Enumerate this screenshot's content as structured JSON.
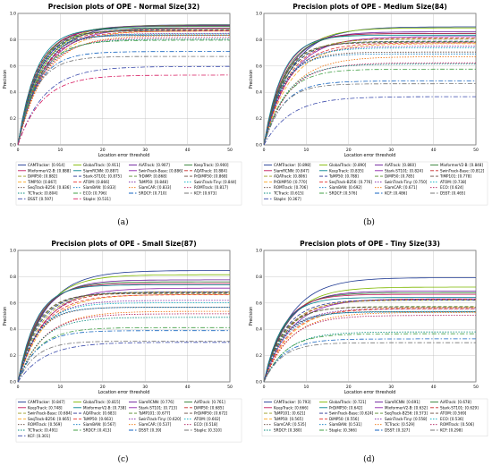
{
  "colors": {
    "palette": [
      "#1f3a93",
      "#7fb800",
      "#6a1b9a",
      "#2e7d32",
      "#c2185b",
      "#00838f",
      "#8e24aa",
      "#c62828",
      "#9e9d24",
      "#283593",
      "#558b2f",
      "#6d4c41",
      "#f9a825",
      "#e53935",
      "#7b1fa2",
      "#00acc1",
      "#5d4037",
      "#0277bd",
      "#ef6c00",
      "#ad1457",
      "#00897b",
      "#43a047",
      "#1565c0",
      "#757575",
      "#3949ab",
      "#d81b60",
      "#004d40",
      "#827717",
      "#4527a0",
      "#5c6bc0"
    ]
  },
  "chart_data": [
    {
      "type": "line",
      "caption": "(a)",
      "title": "Precision plots of OPE - Normal Size(32)",
      "xlabel": "Location error threshold",
      "ylabel": "Precision",
      "xlim": [
        0,
        50
      ],
      "ylim": [
        0,
        1.0
      ],
      "xticks": [
        0,
        10,
        20,
        30,
        40,
        50
      ],
      "yticks": [
        0.0,
        0.2,
        0.4,
        0.6,
        0.8,
        1.0
      ],
      "grid": true,
      "legend_position": "below",
      "series": [
        {
          "name": "CAMTracker: [0.914]",
          "value": 0.914
        },
        {
          "name": "GlobalTrack: [0.911]",
          "value": 0.911
        },
        {
          "name": "AiATrack: [0.907]",
          "value": 0.907
        },
        {
          "name": "KeepTrack: [0.900]",
          "value": 0.9
        },
        {
          "name": "MixformerV2-B: [0.888]",
          "value": 0.888
        },
        {
          "name": "SiamRCNN: [0.887]",
          "value": 0.887
        },
        {
          "name": "SwinTrack-Base: [0.886]",
          "value": 0.886
        },
        {
          "name": "AQATrack: [0.884]",
          "value": 0.884
        },
        {
          "name": "DiMP50: [0.882]",
          "value": 0.882
        },
        {
          "name": "Stark-ST101: [0.875]",
          "value": 0.875
        },
        {
          "name": "TrDiMP: [0.868]",
          "value": 0.868
        },
        {
          "name": "PrDiMP50: [0.868]",
          "value": 0.868
        },
        {
          "name": "TiMP50: [0.867]",
          "value": 0.867
        },
        {
          "name": "ATOM: [0.866]",
          "value": 0.866
        },
        {
          "name": "TsMP50: [0.848]",
          "value": 0.848
        },
        {
          "name": "SwinTrack-Tiny: [0.844]",
          "value": 0.844
        },
        {
          "name": "SeqTrack-B256: [0.836]",
          "value": 0.836
        },
        {
          "name": "SiamBAN: [0.833]",
          "value": 0.833
        },
        {
          "name": "SiamCAR: [0.833]",
          "value": 0.833
        },
        {
          "name": "ROMTrack: [0.817]",
          "value": 0.817
        },
        {
          "name": "TCTrack: [0.804]",
          "value": 0.804
        },
        {
          "name": "ECO: [0.796]",
          "value": 0.796
        },
        {
          "name": "SRDCF: [0.710]",
          "value": 0.71
        },
        {
          "name": "KCF: [0.673]",
          "value": 0.673
        },
        {
          "name": "DSST: [0.597]",
          "value": 0.597
        },
        {
          "name": "Staple: [0.531]",
          "value": 0.531
        }
      ]
    },
    {
      "type": "line",
      "caption": "(b)",
      "title": "Precision plots of OPE - Medium Size(84)",
      "xlabel": "Location error threshold",
      "ylabel": "Precision",
      "xlim": [
        0,
        50
      ],
      "ylim": [
        0,
        1.0
      ],
      "xticks": [
        0,
        10,
        20,
        30,
        40,
        50
      ],
      "yticks": [
        0.0,
        0.2,
        0.4,
        0.6,
        0.8,
        1.0
      ],
      "grid": true,
      "legend_position": "below",
      "series": [
        {
          "name": "CAMTracker: [0.898]",
          "value": 0.898
        },
        {
          "name": "GlobalTrack: [0.890]",
          "value": 0.89
        },
        {
          "name": "AiATrack: [0.860]",
          "value": 0.86
        },
        {
          "name": "MixformerV2-B: [0.848]",
          "value": 0.848
        },
        {
          "name": "SiamRCNN: [0.847]",
          "value": 0.847
        },
        {
          "name": "KeepTrack: [0.835]",
          "value": 0.835
        },
        {
          "name": "Stark-ST101: [0.824]",
          "value": 0.824
        },
        {
          "name": "SwinTrack-Base: [0.812]",
          "value": 0.812
        },
        {
          "name": "AQATrack: [0.806]",
          "value": 0.806
        },
        {
          "name": "TsMP50: [0.788]",
          "value": 0.788
        },
        {
          "name": "DiMP50: [0.785]",
          "value": 0.785
        },
        {
          "name": "TiMP101: [0.778]",
          "value": 0.778
        },
        {
          "name": "PrDiMP50: [0.770]",
          "value": 0.77
        },
        {
          "name": "SeqTrack-B256: [0.776]",
          "value": 0.776
        },
        {
          "name": "SwinTrack-Tiny: [0.750]",
          "value": 0.75
        },
        {
          "name": "ATOM: [0.738]",
          "value": 0.738
        },
        {
          "name": "ROMTrack: [0.706]",
          "value": 0.706
        },
        {
          "name": "SiamBAN: [0.692]",
          "value": 0.692
        },
        {
          "name": "SiamCAR: [0.671]",
          "value": 0.671
        },
        {
          "name": "ECO: [0.624]",
          "value": 0.624
        },
        {
          "name": "TCTrack: [0.615]",
          "value": 0.615
        },
        {
          "name": "SRDCF: [0.576]",
          "value": 0.576
        },
        {
          "name": "KCF: [0.486]",
          "value": 0.486
        },
        {
          "name": "DSST: [0.465]",
          "value": 0.465
        },
        {
          "name": "Staple: [0.367]",
          "value": 0.367
        }
      ]
    },
    {
      "type": "line",
      "caption": "(c)",
      "title": "Precision plots of OPE - Small Size(87)",
      "xlabel": "Location error threshold",
      "ylabel": "Precision",
      "xlim": [
        0,
        50
      ],
      "ylim": [
        0,
        1.0
      ],
      "xticks": [
        0,
        10,
        20,
        30,
        40,
        50
      ],
      "yticks": [
        0.0,
        0.2,
        0.4,
        0.6,
        0.8,
        1.0
      ],
      "grid": true,
      "legend_position": "below",
      "series": [
        {
          "name": "CAMTracker: [0.847]",
          "value": 0.847
        },
        {
          "name": "GlobalTrack: [0.815]",
          "value": 0.815
        },
        {
          "name": "SiamRCNN: [0.776]",
          "value": 0.776
        },
        {
          "name": "AiATrack: [0.761]",
          "value": 0.761
        },
        {
          "name": "KeepTrack: [0.748]",
          "value": 0.748
        },
        {
          "name": "MixformerV2-B: [0.738]",
          "value": 0.738
        },
        {
          "name": "Stark-ST101: [0.713]",
          "value": 0.713
        },
        {
          "name": "DiMP50: [0.685]",
          "value": 0.685
        },
        {
          "name": "SwinTrack-Base: [0.684]",
          "value": 0.684
        },
        {
          "name": "AQATrack: [0.683]",
          "value": 0.683
        },
        {
          "name": "TsMP101: [0.677]",
          "value": 0.677
        },
        {
          "name": "PrDiMP50: [0.672]",
          "value": 0.672
        },
        {
          "name": "SeqTrack-B256: [0.665]",
          "value": 0.665
        },
        {
          "name": "TsMP50: [0.663]",
          "value": 0.663
        },
        {
          "name": "SwinTrack-Tiny: [0.620]",
          "value": 0.62
        },
        {
          "name": "ATOM: [0.602]",
          "value": 0.602
        },
        {
          "name": "ROMTrack: [0.569]",
          "value": 0.569
        },
        {
          "name": "SiamBAN: [0.567]",
          "value": 0.567
        },
        {
          "name": "SiamCAR: [0.537]",
          "value": 0.537
        },
        {
          "name": "ECO: [0.518]",
          "value": 0.518
        },
        {
          "name": "TCTrack: [0.491]",
          "value": 0.491
        },
        {
          "name": "SRDCF: [0.413]",
          "value": 0.413
        },
        {
          "name": "DSST: [0.39]",
          "value": 0.39
        },
        {
          "name": "Staple: [0.310]",
          "value": 0.31
        },
        {
          "name": "KCF: [0.301]",
          "value": 0.301
        }
      ]
    },
    {
      "type": "line",
      "caption": "(d)",
      "title": "Precision plots of OPE - Tiny Size(33)",
      "xlabel": "Location error threshold",
      "ylabel": "Precision",
      "xlim": [
        0,
        50
      ],
      "ylim": [
        0,
        1.0
      ],
      "xticks": [
        0,
        10,
        20,
        30,
        40,
        50
      ],
      "yticks": [
        0.0,
        0.2,
        0.4,
        0.6,
        0.8,
        1.0
      ],
      "grid": true,
      "legend_position": "below",
      "series": [
        {
          "name": "CAMTracker: [0.793]",
          "value": 0.793
        },
        {
          "name": "GlobalTrack: [0.721]",
          "value": 0.721
        },
        {
          "name": "SiamRCNN: [0.691]",
          "value": 0.691
        },
        {
          "name": "AiATrack: [0.678]",
          "value": 0.678
        },
        {
          "name": "KeepTrack: [0.666]",
          "value": 0.666
        },
        {
          "name": "PrDiMP50: [0.642]",
          "value": 0.642
        },
        {
          "name": "MixformerV2-B: [0.632]",
          "value": 0.632
        },
        {
          "name": "Stark-ST101: [0.629]",
          "value": 0.629
        },
        {
          "name": "TsMP101: [0.621]",
          "value": 0.621
        },
        {
          "name": "SwinTrack-Base: [0.624]",
          "value": 0.624
        },
        {
          "name": "SeqTrack-B256: [0.573]",
          "value": 0.573
        },
        {
          "name": "ATOM: [0.569]",
          "value": 0.569
        },
        {
          "name": "TsMP50: [0.565]",
          "value": 0.565
        },
        {
          "name": "DiMP50: [0.556]",
          "value": 0.556
        },
        {
          "name": "SwinTrack-Tiny: [0.558]",
          "value": 0.558
        },
        {
          "name": "ECO: [0.536]",
          "value": 0.536
        },
        {
          "name": "SiamCAR: [0.535]",
          "value": 0.535
        },
        {
          "name": "SiamBAN: [0.531]",
          "value": 0.531
        },
        {
          "name": "TCTrack: [0.529]",
          "value": 0.529
        },
        {
          "name": "ROMTrack: [0.506]",
          "value": 0.506
        },
        {
          "name": "SRDCF: [0.380]",
          "value": 0.38
        },
        {
          "name": "Staple: [0.366]",
          "value": 0.366
        },
        {
          "name": "DSST: [0.327]",
          "value": 0.327
        },
        {
          "name": "KCF: [0.298]",
          "value": 0.298
        }
      ]
    }
  ]
}
